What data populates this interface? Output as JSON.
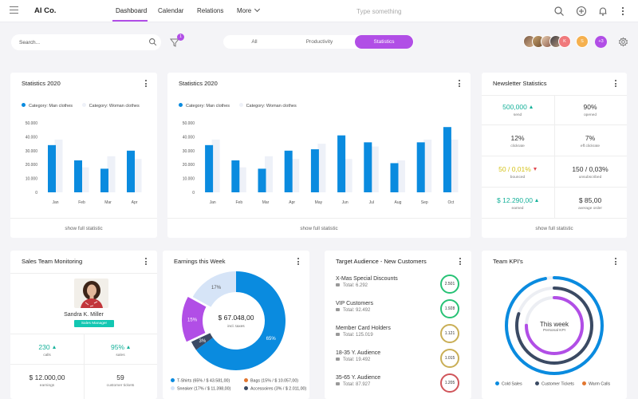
{
  "app": {
    "name": "AI Co.",
    "nav": [
      "Dashboard",
      "Calendar",
      "Relations",
      "More"
    ],
    "active_nav": "Dashboard",
    "search_placeholder": "Type something",
    "icons": [
      "search-icon",
      "add-icon",
      "bell-icon",
      "more-vertical-icon"
    ]
  },
  "toolbar": {
    "search_placeholder": "Search...",
    "filter_badge": "1",
    "segments": [
      "All",
      "Productivity",
      "Statistics"
    ],
    "active_segment": "Statistics",
    "avatar_more": "+3",
    "avatars": [
      "avatar-1",
      "avatar-2",
      "avatar-3",
      "avatar-4",
      "avatar-5-initial-k",
      "avatar-6-initial-s"
    ]
  },
  "colors": {
    "accent": "#b14ee6",
    "primary_blue": "#0a8bdf",
    "light_series": "#eef1f8",
    "teal": "#12c7b2",
    "positive": "#16b19a",
    "negative": "#e0484f",
    "warning": "#d4c21a"
  },
  "stats_small": {
    "title": "Statistics 2020",
    "legend": [
      "Category: Man clothes",
      "Category: Woman clothes"
    ],
    "link": "show full statistic"
  },
  "stats_large": {
    "title": "Statistics 2020",
    "legend": [
      "Category: Man clothes",
      "Category: Woman clothes"
    ],
    "link": "show full statistic"
  },
  "newsletter": {
    "title": "Newsletter Statistics",
    "link": "show full statistic",
    "cells": [
      {
        "value": "500,000",
        "label": "send",
        "trend": "up",
        "color": "#16b19a"
      },
      {
        "value": "90%",
        "label": "opened",
        "trend": "",
        "color": "#333333"
      },
      {
        "value": "12%",
        "label": "clickrate",
        "trend": "",
        "color": "#333333"
      },
      {
        "value": "7%",
        "label": "eff.clickrate",
        "trend": "",
        "color": "#333333"
      },
      {
        "value": "50 / 0,01%",
        "label": "bounced",
        "trend": "down",
        "color": "#d4c21a"
      },
      {
        "value": "150 / 0,03%",
        "label": "unsubscribed",
        "trend": "",
        "color": "#333333"
      },
      {
        "value": "$ 12.290,00",
        "label": "earned",
        "trend": "up",
        "color": "#16b19a"
      },
      {
        "value": "$ 85,00",
        "label": "average order",
        "trend": "",
        "color": "#333333"
      }
    ]
  },
  "sales_team": {
    "title": "Sales Team Monitoring",
    "person": "Sandra K. Miller",
    "role": "Sales Manager",
    "stats": [
      {
        "value": "230",
        "label": "calls",
        "trend": "up",
        "color": "#16b19a"
      },
      {
        "value": "95%",
        "label": "sales",
        "trend": "up",
        "color": "#16b19a"
      },
      {
        "value": "$ 12.000,00",
        "label": "earnings",
        "trend": "",
        "color": "#333333"
      },
      {
        "value": "59",
        "label": "customer tickets",
        "trend": "",
        "color": "#333333"
      }
    ]
  },
  "earnings": {
    "title": "Earnings this Week",
    "center_value": "$ 67.048,00",
    "center_label": "incl. taxes",
    "legend": [
      {
        "label": "T-Shirts (65% / $ 43.581,00)",
        "color": "#0a8bdf"
      },
      {
        "label": "Bags (15% / $ 10.057,00)",
        "color": "#e2762f"
      },
      {
        "label": "Sneaker (17% / $ 11.398,00)",
        "color": "#d6e4f7"
      },
      {
        "label": "Accessoires (3% / $ 2.011,00)",
        "color": "#3b4a63"
      }
    ]
  },
  "audience": {
    "title": "Target Audience - New Customers",
    "items": [
      {
        "name": "X-Mas Special Discounts",
        "total": "Total: 6.292",
        "count": "2.501",
        "ring": "#27c275"
      },
      {
        "name": "VIP Customers",
        "total": "Total: 92.492",
        "count": "1.928",
        "ring": "#27c275"
      },
      {
        "name": "Member Card Holders",
        "total": "Total: 125.019",
        "count": "1.121",
        "ring": "#c9ae55"
      },
      {
        "name": "18-35 Y. Audience",
        "total": "Total: 19.492",
        "count": "1.015",
        "ring": "#c9ae55"
      },
      {
        "name": "35-65 Y. Audience",
        "total": "Total: 87.927",
        "count": "1.205",
        "ring": "#d0555a"
      }
    ]
  },
  "kpi": {
    "title": "Team KPI's",
    "center_title": "This week",
    "center_sub": "Personal KPI",
    "legend": [
      {
        "label": "Cold Sales",
        "color": "#0a8bdf"
      },
      {
        "label": "Customer Tickets",
        "color": "#3b4a63"
      },
      {
        "label": "Warm Calls",
        "color": "#e2762f"
      }
    ],
    "rings": [
      {
        "color": "#0a8bdf",
        "fraction": 0.97
      },
      {
        "color": "#3b4a63",
        "fraction": 0.8
      },
      {
        "color": "#b14ee6",
        "fraction": 0.75
      }
    ]
  },
  "chart_data": [
    {
      "type": "bar",
      "title": "Statistics 2020",
      "categories": [
        "Jan",
        "Feb",
        "Mar",
        "Apr"
      ],
      "series": [
        {
          "name": "Category: Man clothes",
          "values": [
            34000,
            23000,
            17000,
            30000
          ]
        },
        {
          "name": "Category: Woman clothes",
          "values": [
            38000,
            18000,
            26000,
            24000
          ]
        }
      ],
      "ylim": [
        0,
        50000
      ],
      "yticks": [
        "50.000",
        "40.000",
        "30.000",
        "20.000",
        "10.000",
        "0"
      ],
      "grid": false,
      "legend": "top-left"
    },
    {
      "type": "bar",
      "title": "Statistics 2020",
      "categories": [
        "Jan",
        "Feb",
        "Mar",
        "Apr",
        "May",
        "Jun",
        "Jul",
        "Aug",
        "Sep",
        "Oct"
      ],
      "series": [
        {
          "name": "Category: Man clothes",
          "values": [
            34000,
            23000,
            17000,
            30000,
            31000,
            41000,
            36000,
            21000,
            36000,
            47000
          ]
        },
        {
          "name": "Category: Woman clothes",
          "values": [
            38000,
            18000,
            26000,
            24000,
            35000,
            24000,
            33000,
            23000,
            38000,
            38000
          ]
        }
      ],
      "ylim": [
        0,
        50000
      ],
      "yticks": [
        "50.000",
        "40.000",
        "30.000",
        "20.000",
        "10.000",
        "0"
      ],
      "grid": false,
      "legend": "top-left"
    },
    {
      "type": "pie",
      "title": "Earnings this Week",
      "categories": [
        "T-Shirts",
        "Bags",
        "Sneaker",
        "Accessoires"
      ],
      "values": [
        65,
        15,
        17,
        3
      ],
      "slice_labels": [
        "65%",
        "15%",
        "17%",
        "3%"
      ],
      "colors": [
        "#0a8bdf",
        "#b14ee6",
        "#d6e4f7",
        "#3b4a63"
      ]
    }
  ]
}
